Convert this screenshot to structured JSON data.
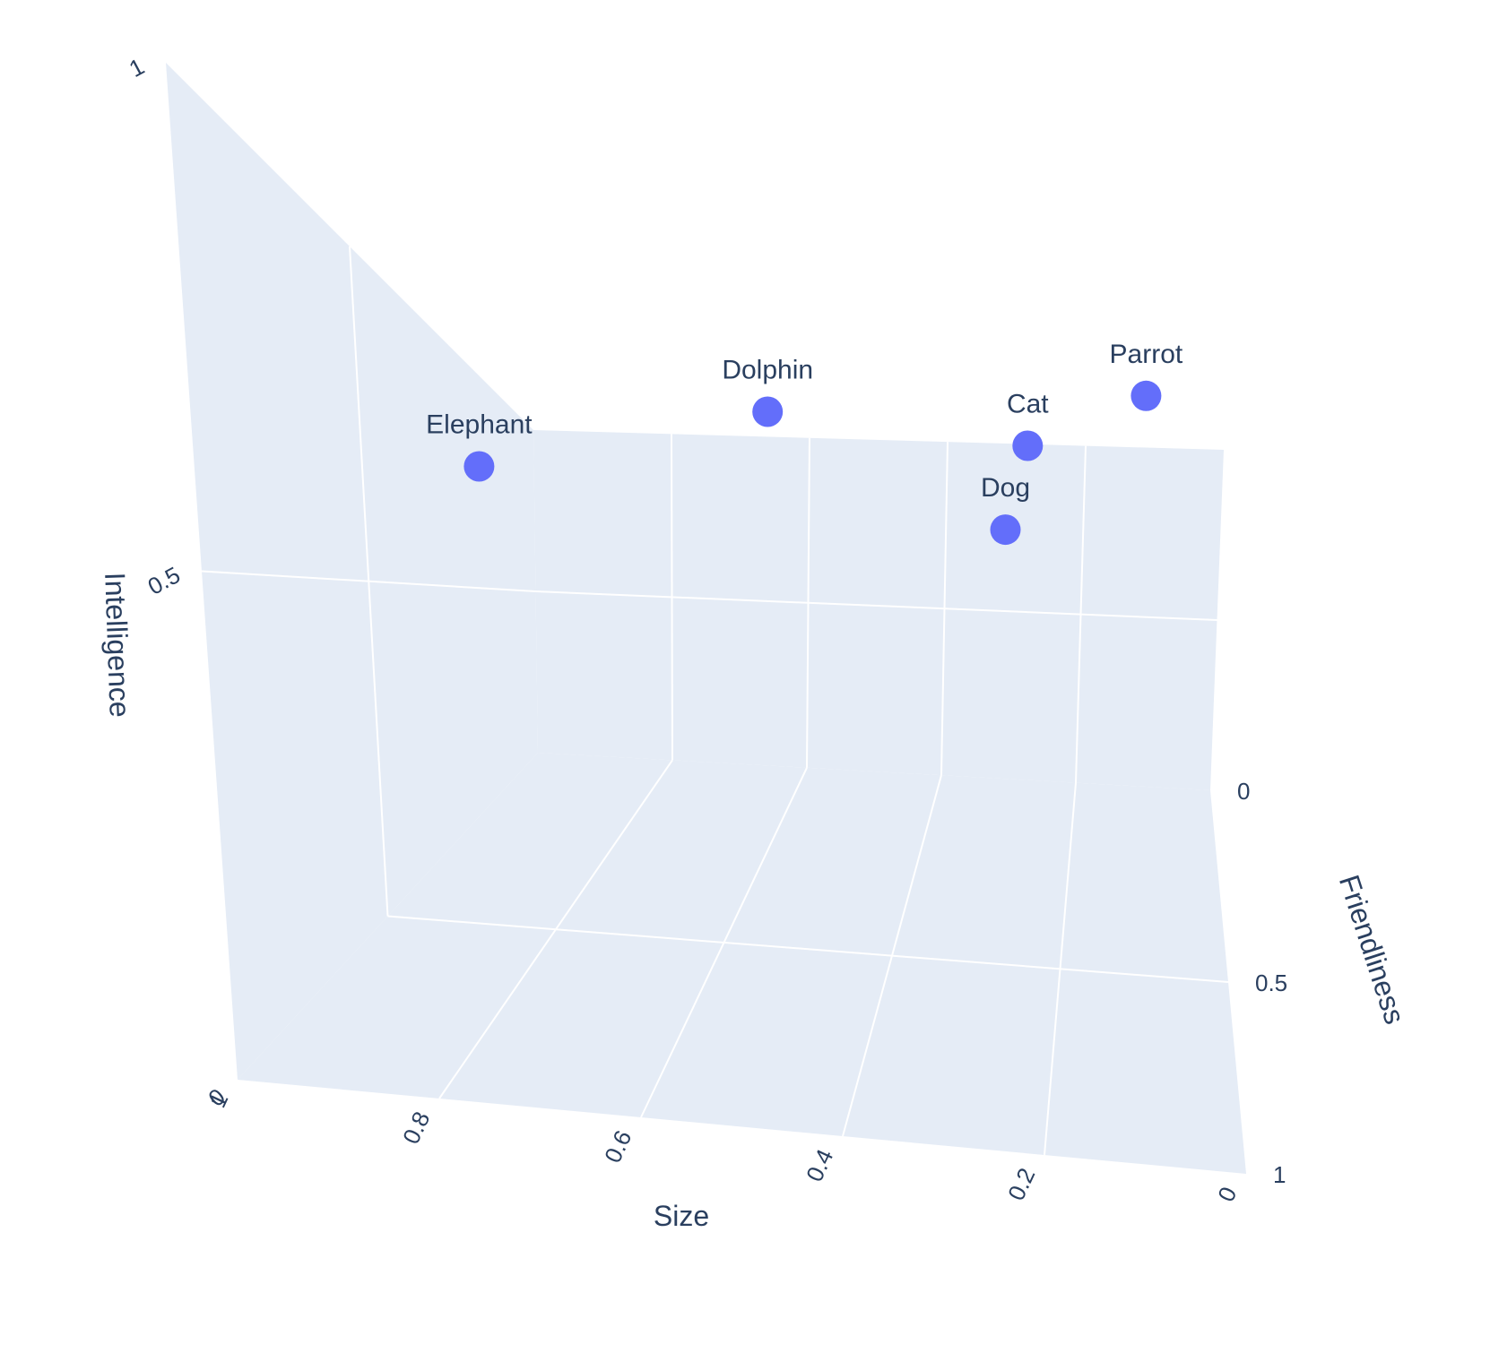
{
  "colors": {
    "pane": "#e5ecf6",
    "grid": "#ffffff",
    "marker": "#636efa",
    "text": "#2a3f5f"
  },
  "chart_data": {
    "type": "scatter3d",
    "title": "",
    "axes": {
      "x": {
        "label": "Size",
        "range": [
          0,
          1
        ],
        "reversed": true,
        "ticks": [
          "0",
          "0.2",
          "0.4",
          "0.6",
          "0.8",
          "1"
        ]
      },
      "y": {
        "label": "Friendliness",
        "range": [
          0,
          1
        ],
        "ticks": [
          "0",
          "0.5",
          "1"
        ]
      },
      "z": {
        "label": "Intelligence",
        "range": [
          0,
          1
        ],
        "ticks": [
          "0",
          "0.5",
          "1"
        ]
      }
    },
    "grid": true,
    "legend": "none",
    "points": [
      {
        "label": "Dolphin",
        "size": 0.6,
        "friendliness": 0.8,
        "intelligence": 0.9
      },
      {
        "label": "Elephant",
        "size": 0.9,
        "friendliness": 0.6,
        "intelligence": 0.7
      },
      {
        "label": "Dog",
        "size": 0.3,
        "friendliness": 0.9,
        "intelligence": 0.7
      },
      {
        "label": "Cat",
        "size": 0.25,
        "friendliness": 0.7,
        "intelligence": 0.8
      },
      {
        "label": "Parrot",
        "size": 0.1,
        "friendliness": 0.6,
        "intelligence": 0.85
      }
    ]
  }
}
